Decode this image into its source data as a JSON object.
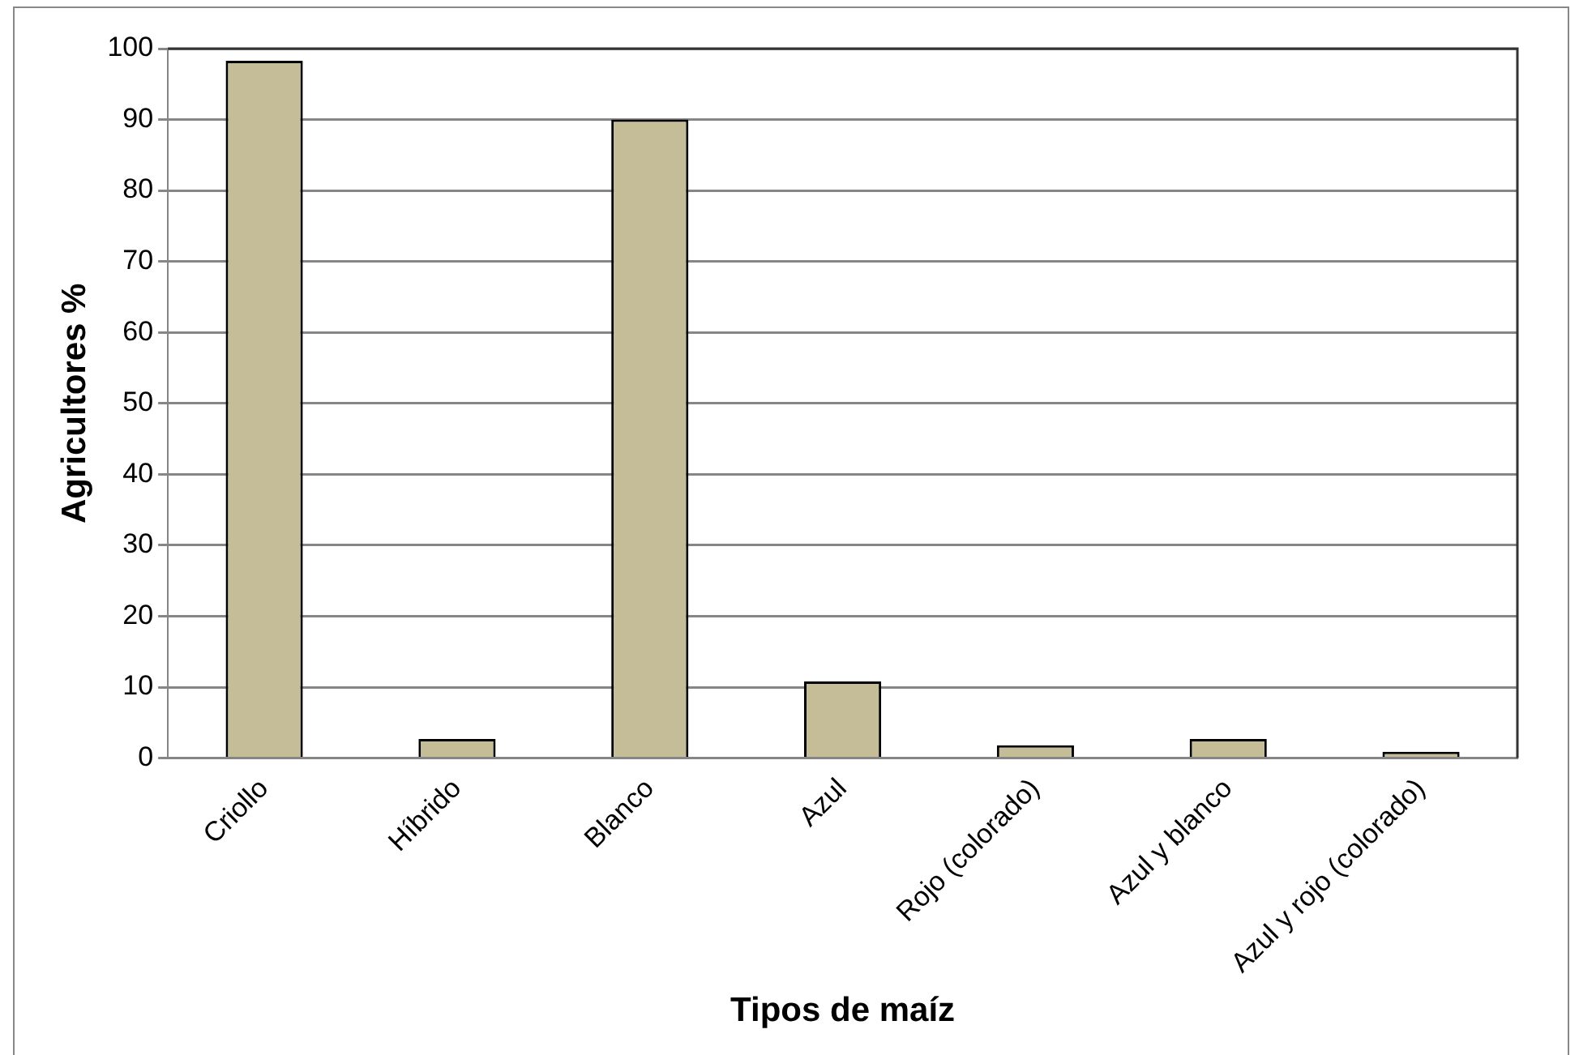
{
  "chart_data": {
    "type": "bar",
    "xlabel": "Tipos de maíz",
    "ylabel": "Agricultores %",
    "categories": [
      "Criollo",
      "Híbrido",
      "Blanco",
      "Azul",
      "Rojo (colorado)",
      "Azul y blanco",
      "Azul y rojo (colorado)"
    ],
    "values": [
      98.3,
      2.7,
      90,
      10.8,
      1.8,
      2.7,
      0.9
    ],
    "color": "#c4bd97",
    "ylim": [
      0,
      100
    ],
    "yticks": [
      0,
      10,
      20,
      30,
      40,
      50,
      60,
      70,
      80,
      90,
      100
    ],
    "grid": "y",
    "legend": false
  }
}
